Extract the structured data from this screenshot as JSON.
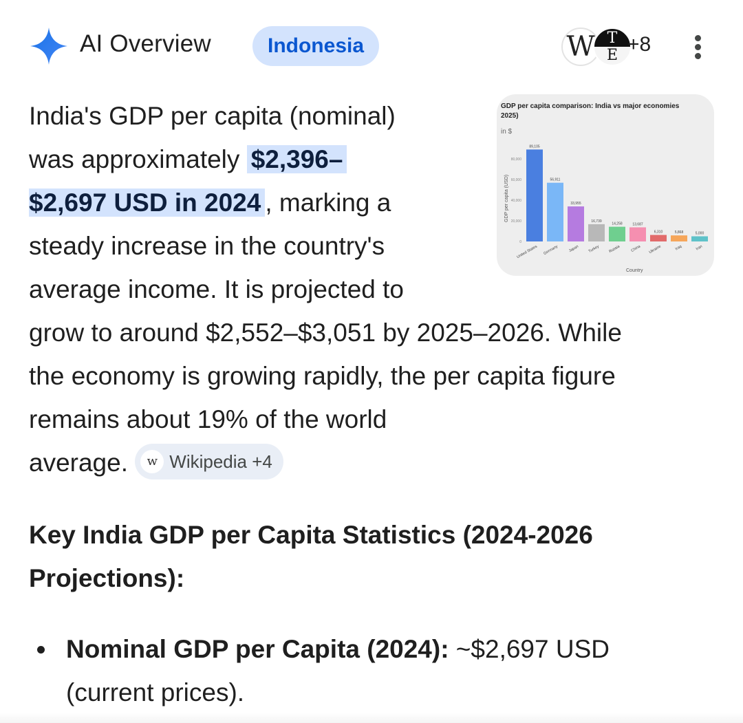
{
  "header": {
    "title": "AI Overview",
    "location_chip": "Indonesia",
    "source_icons": {
      "first": "W",
      "second_top": "T",
      "second_bottom": "E"
    },
    "source_count": "+8",
    "more_icon": "more-vert-icon"
  },
  "paragraph": {
    "l1": "India's GDP per capita (nominal)",
    "l2_pre": "was approximately ",
    "l2_hl": "$2,396–",
    "l3_hl": "$2,697 USD in 2024",
    "l3_post": ", marking a",
    "l4": "steady increase in the country's",
    "l5": "average income. It is projected to",
    "l6": "grow to around $2,552–$3,051 by 2025–2026. While",
    "l7": "the economy is growing rapidly, the per capita figure",
    "l8": "remains about 19% of the world",
    "l9": "average. ",
    "citation": {
      "icon_letter": "w",
      "label": "Wikipedia +4"
    }
  },
  "thumbnail": {
    "chart_data": {
      "type": "bar",
      "title_line1": "GDP per capita comparison: India vs major economies",
      "title_line2": "2025)",
      "subtitle": "in $",
      "ylabel": "GDP per capita (USD)",
      "xlabel": "Country",
      "ylim": [
        0,
        100000
      ],
      "yticks": [
        "0",
        "20,000",
        "40,000",
        "60,000",
        "80,000"
      ],
      "categories": [
        "United States",
        "Germany",
        "Japan",
        "Turkey",
        "Russia",
        "China",
        "Ukraine",
        "Iraq",
        "Iran"
      ],
      "values": [
        89105,
        56911,
        33955,
        16739,
        14258,
        13687,
        6310,
        5868,
        5000
      ],
      "value_labels": [
        "89,105",
        "56,911",
        "33,955",
        "16,739",
        "14,258",
        "13,687",
        "6,310",
        "5,868",
        "5,000"
      ],
      "colors": [
        "#4a7fe0",
        "#7ab7f7",
        "#b57be0",
        "#b8b8b8",
        "#6fcf8f",
        "#f58fb0",
        "#e26b6b",
        "#f6a65a",
        "#5fc2c9"
      ]
    }
  },
  "section": {
    "heading_l1": "Key India GDP per Capita Statistics (2024-2026",
    "heading_l2": "Projections):"
  },
  "bullets": [
    {
      "bold": "Nominal GDP per Capita (2024):",
      "rest": " ~$2,697 USD",
      "cont": "(current prices)."
    }
  ]
}
